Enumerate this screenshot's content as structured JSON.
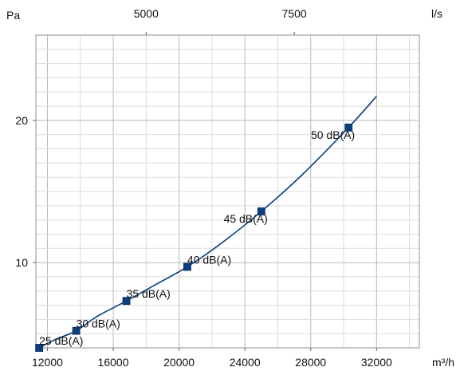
{
  "chart_data": {
    "type": "line",
    "x_unit": "m³/h",
    "x2_unit": "l/s",
    "y_unit": "Pa",
    "x_ticks": [
      12000,
      16000,
      20000,
      24000,
      28000,
      32000
    ],
    "x2_ticks": [
      5000,
      7500
    ],
    "y_ticks": [
      10,
      20
    ],
    "xlim": [
      11300,
      34600
    ],
    "ylim": [
      4,
      26
    ],
    "grid": true,
    "curve": {
      "x": [
        11500,
        12500,
        13750,
        15000,
        16800,
        18500,
        20500,
        22500,
        25000,
        27500,
        30300,
        32000
      ],
      "y": [
        4.0,
        4.6,
        5.2,
        6.2,
        7.3,
        8.4,
        9.7,
        11.3,
        13.6,
        16.2,
        19.5,
        21.7
      ]
    },
    "points": [
      {
        "x": 11500,
        "y": 4.0,
        "label": "25 dB(A)"
      },
      {
        "x": 13750,
        "y": 5.2,
        "label": "30 dB(A)"
      },
      {
        "x": 16800,
        "y": 7.3,
        "label": "35 dB(A)"
      },
      {
        "x": 20500,
        "y": 9.7,
        "label": "40 dB(A)"
      },
      {
        "x": 25000,
        "y": 13.6,
        "label": "45 dB(A)"
      },
      {
        "x": 30300,
        "y": 19.5,
        "label": "50 dB(A)"
      }
    ],
    "colors": {
      "line": "#0a3f7a",
      "marker": "#0d3e7e",
      "grid_major": "#b9b9b9",
      "grid_minor": "#dcdcdc",
      "frame": "#8f8f8f"
    }
  }
}
